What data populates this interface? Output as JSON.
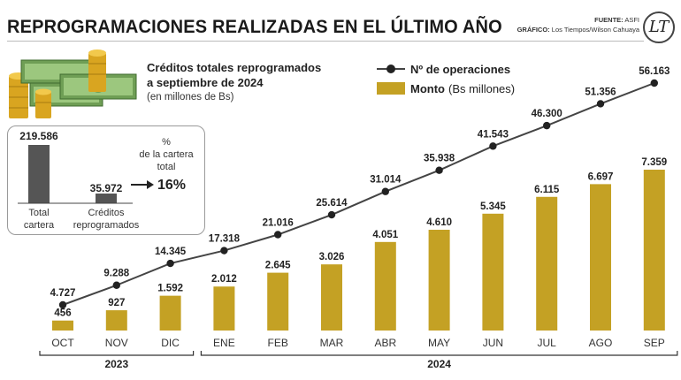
{
  "header": {
    "title": "REPROGRAMACIONES REALIZADAS EN EL ÚLTIMO AÑO",
    "source_label": "FUENTE:",
    "source": "ASFI",
    "graphic_label": "GRÁFICO:",
    "graphic": "Los Tiempos/Wilson Cahuaya",
    "logo_text": "LT"
  },
  "credits": {
    "title_line1": "Créditos totales reprogramados",
    "title_line2": "a septiembre de 2024",
    "subtitle": "(en millones de Bs)",
    "total_value": "219.586",
    "total_label_line1": "Total",
    "total_label_line2": "cartera",
    "reprog_value": "35.972",
    "reprog_label_line1": "Créditos",
    "reprog_label_line2": "reprogramados",
    "pct_symbol": "%",
    "pct_line1": "de la cartera",
    "pct_line2": "total",
    "pct_value": "16%",
    "bar_values": [
      219586,
      35972
    ]
  },
  "legend": {
    "operations_label": "Nº de operaciones",
    "amount_label": "Monto",
    "amount_unit": "(Bs millones)"
  },
  "colors": {
    "bar": "#c4a124",
    "line": "#444444",
    "dot": "#222222",
    "mini_bar": "#555555"
  },
  "chart_data": {
    "type": "bar",
    "title": "Reprogramaciones realizadas en el último año",
    "categories": [
      "OCT",
      "NOV",
      "DIC",
      "ENE",
      "FEB",
      "MAR",
      "ABR",
      "MAY",
      "JUN",
      "JUL",
      "AGO",
      "SEP"
    ],
    "series": [
      {
        "name": "Monto (Bs millones)",
        "type": "bar",
        "values": [
          456,
          927,
          1592,
          2012,
          2645,
          3026,
          4051,
          4610,
          5345,
          6115,
          6697,
          7359
        ],
        "labels": [
          "456",
          "927",
          "1.592",
          "2.012",
          "2.645",
          "3.026",
          "4.051",
          "4.610",
          "5.345",
          "6.115",
          "6.697",
          "7.359"
        ]
      },
      {
        "name": "Nº de operaciones",
        "type": "line",
        "values": [
          4727,
          9288,
          14345,
          17318,
          21016,
          25614,
          31014,
          35938,
          41543,
          46300,
          51356,
          56163
        ],
        "labels": [
          "4.727",
          "9.288",
          "14.345",
          "17.318",
          "21.016",
          "25.614",
          "31.014",
          "35.938",
          "41.543",
          "46.300",
          "51.356",
          "56.163"
        ]
      }
    ],
    "year_groups": [
      {
        "label": "2023",
        "from": 0,
        "to": 2
      },
      {
        "label": "2024",
        "from": 3,
        "to": 11
      }
    ],
    "ylim_bar": [
      0,
      7359
    ],
    "ylim_line": [
      0,
      56163
    ]
  }
}
